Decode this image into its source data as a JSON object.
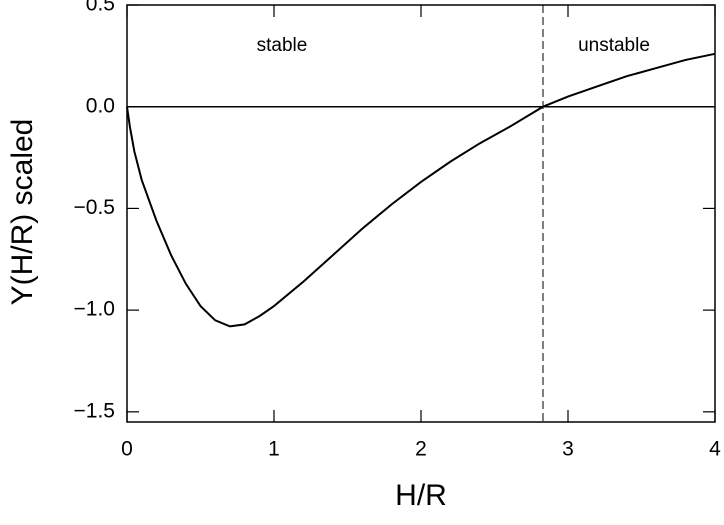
{
  "chart_data": {
    "type": "line",
    "xlabel": "H/R",
    "ylabel": "Y(H/R) scaled",
    "annotations": [
      "stable",
      "unstable"
    ],
    "x": [
      0,
      0.02,
      0.05,
      0.1,
      0.2,
      0.3,
      0.4,
      0.5,
      0.6,
      0.7,
      0.8,
      0.9,
      1.0,
      1.2,
      1.4,
      1.6,
      1.8,
      2.0,
      2.2,
      2.4,
      2.6,
      2.83,
      3.0,
      3.2,
      3.4,
      3.6,
      3.8,
      4.0
    ],
    "series": [
      {
        "color": "#000000",
        "values": [
          0,
          -0.1,
          -0.22,
          -0.36,
          -0.56,
          -0.73,
          -0.87,
          -0.98,
          -1.05,
          -1.08,
          -1.07,
          -1.03,
          -0.98,
          -0.86,
          -0.73,
          -0.6,
          -0.48,
          -0.37,
          -0.27,
          -0.18,
          -0.1,
          0,
          0.05,
          0.1,
          0.15,
          0.19,
          0.23,
          0.26
        ]
      }
    ],
    "vline": 2.83,
    "hline": 0,
    "xlim": [
      0,
      4
    ],
    "xticks": [
      0,
      1,
      2,
      3,
      4
    ],
    "ylim": [
      -1.55,
      0.5
    ],
    "yticks": [
      {
        "value": -1.5,
        "label": "−1.5"
      },
      {
        "value": -1.0,
        "label": "−1.0"
      },
      {
        "value": -0.5,
        "label": "−0.5"
      },
      {
        "value": 0,
        "label": "0.0"
      },
      {
        "value": 0.5,
        "label": "0.5"
      }
    ]
  }
}
